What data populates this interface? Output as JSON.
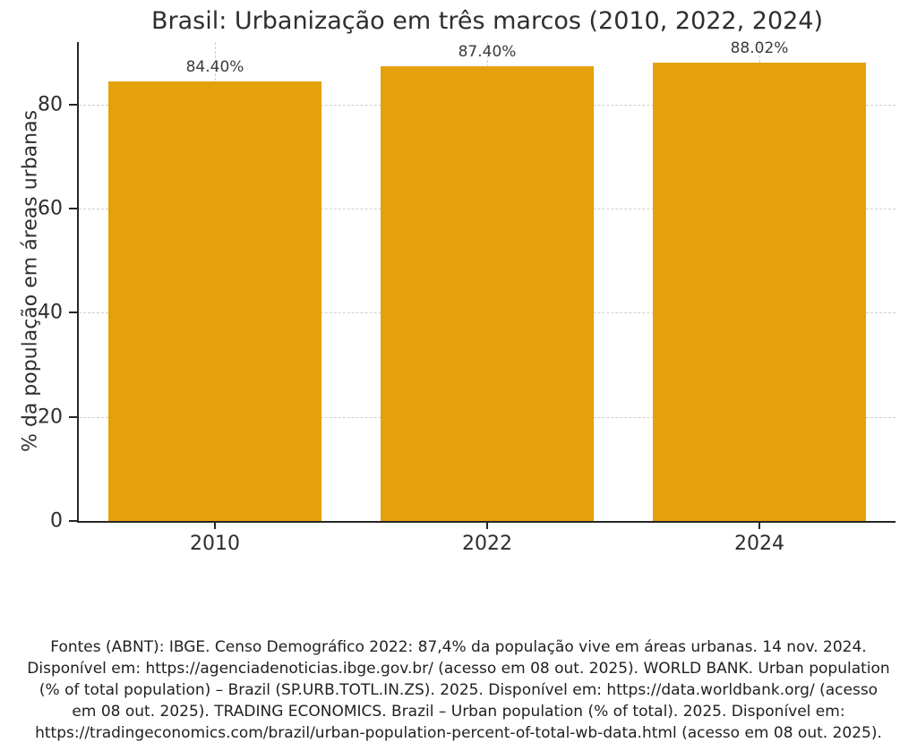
{
  "chart_data": {
    "type": "bar",
    "title": "Brasil: Urbanização em três marcos (2010, 2022, 2024)",
    "categories": [
      "2010",
      "2022",
      "2024"
    ],
    "values": [
      84.4,
      87.4,
      88.02
    ],
    "bar_labels": [
      "84.40%",
      "87.40%",
      "88.02%"
    ],
    "xlabel": "",
    "ylabel": "% da população em áreas urbanas",
    "ylim": [
      0,
      92
    ],
    "yticks": [
      0,
      20,
      40,
      60,
      80
    ],
    "grid": "dashed light-gray horizontal lines at yticks and vertical lines at category centers",
    "legend": "none",
    "bar_color": "#E4A10B",
    "axis_color": "#262626",
    "gridline_color": "#cfcfcf"
  },
  "footer": {
    "lines": [
      "Fontes (ABNT): IBGE. Censo Demográfico 2022: 87,4% da população vive em áreas urbanas. 14 nov. 2024.",
      "Disponível em: https://agenciadenoticias.ibge.gov.br/ (acesso em 08 out. 2025). WORLD BANK. Urban population",
      "(% of total population) – Brazil (SP.URB.TOTL.IN.ZS). 2025. Disponível em: https://data.worldbank.org/ (acesso",
      "em 08 out. 2025). TRADING ECONOMICS. Brazil – Urban population (% of total). 2025. Disponível em:",
      "https://tradingeconomics.com/brazil/urban-population-percent-of-total-wb-data.html (acesso em 08 out. 2025)."
    ]
  }
}
